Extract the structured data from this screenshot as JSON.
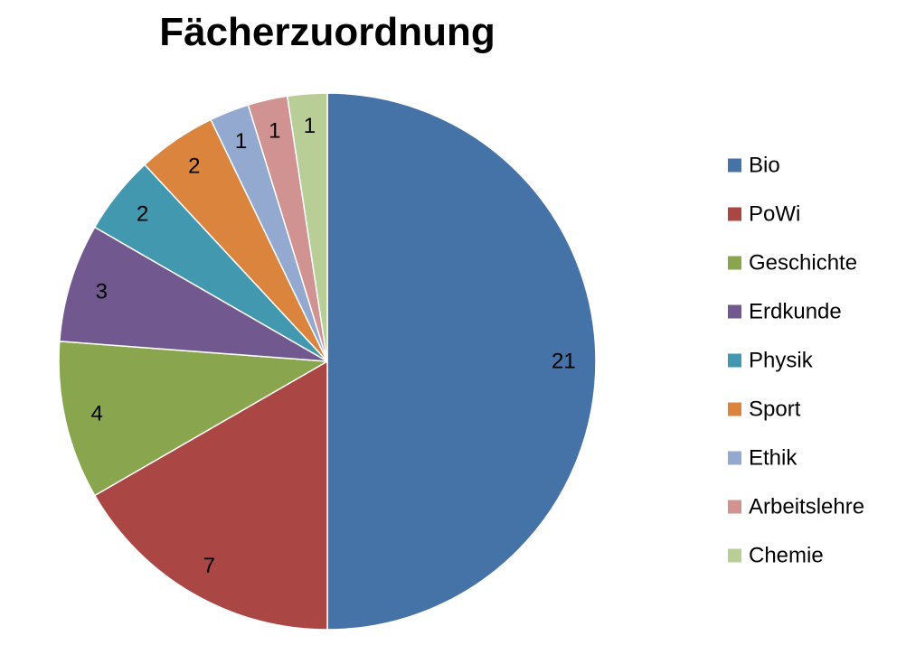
{
  "chart_data": {
    "type": "pie",
    "title": "Fächerzuordnung",
    "categories": [
      "Bio",
      "PoWi",
      "Geschichte",
      "Erdkunde",
      "Physik",
      "Sport",
      "Ethik",
      "Arbeitslehre",
      "Chemie"
    ],
    "values": [
      21,
      7,
      4,
      3,
      2,
      2,
      1,
      1,
      1
    ],
    "colors": [
      "#4572A7",
      "#AA4643",
      "#89A54E",
      "#71588F",
      "#4198AF",
      "#DB843D",
      "#93A9CF",
      "#D19392",
      "#B9CD96"
    ],
    "data_labels": [
      "21",
      "7",
      "4",
      "3",
      "2",
      "2",
      "1",
      "1",
      "1"
    ],
    "start_angle_deg": 0,
    "direction": "clockwise",
    "legend_position": "right"
  }
}
